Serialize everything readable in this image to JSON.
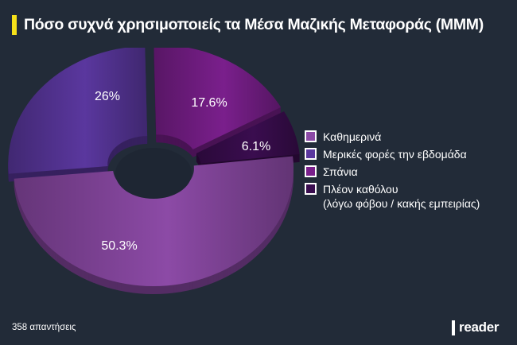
{
  "header": {
    "title": "Πόσο συχνά χρησιμοποιείς τα Μέσα Μαζικής Μεταφοράς (ΜΜΜ)",
    "accent_color": "#f6e11a"
  },
  "footer": {
    "responses": "358 απαντήσεις",
    "logo": "reader"
  },
  "legend": {
    "items": [
      {
        "label": "Καθημερινά",
        "sub": "",
        "color": "#8c4aa6"
      },
      {
        "label": "Μερικές φορές την εβδομάδα",
        "sub": "",
        "color": "#5a379e"
      },
      {
        "label": "Σπάνια",
        "sub": "",
        "color": "#7a1f8c"
      },
      {
        "label": "Πλέον καθόλου",
        "sub": "(λόγω φόβου / κακής εμπειρίας)",
        "color": "#3a0d4f"
      }
    ]
  },
  "chart_data": {
    "type": "pie",
    "variant": "3d-donut",
    "title": "Πόσο συχνά χρησιμοποιείς τα Μέσα Μαζικής Μεταφοράς (ΜΜΜ)",
    "categories": [
      "Καθημερινά",
      "Μερικές φορές την εβδομάδα",
      "Σπάνια",
      "Πλέον καθόλου (λόγω φόβου / κακής εμπειρίας)"
    ],
    "values": [
      50.3,
      26,
      17.6,
      6.1
    ],
    "labels": [
      "50.3%",
      "26%",
      "17.6%",
      "6.1%"
    ],
    "colors": [
      "#8c4aa6",
      "#5a379e",
      "#7a1f8c",
      "#3a0d4f"
    ],
    "legend_position": "right",
    "total_responses": 358
  }
}
